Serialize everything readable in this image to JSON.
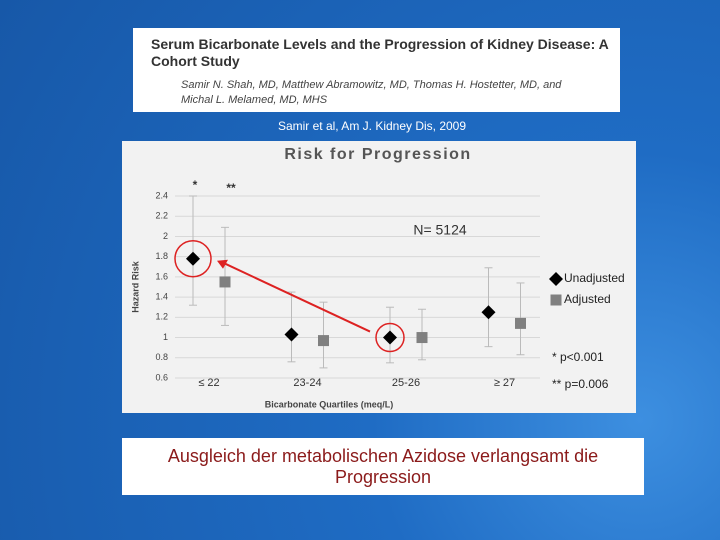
{
  "header": {
    "title": "Serum Bicarbonate Levels and the Progression of Kidney Disease: A Cohort Study",
    "authors": "Samir N. Shah, MD, Matthew Abramowitz, MD, Thomas H. Hostetter, MD, and Michal L. Melamed, MD, MHS"
  },
  "citation": "Samir et al, Am J. Kidney Dis, 2009",
  "chart_data": {
    "type": "scatter",
    "title": "Risk for Progression",
    "x_label": "Bicarbonate Quartiles (meq/L)",
    "y_label": "Hazard Risk",
    "categories": [
      "≤ 22",
      "23-24",
      "25-26",
      "≥ 27"
    ],
    "series": [
      {
        "name": "Unadjusted",
        "color": "#000000",
        "marker": "diamond",
        "values": [
          1.78,
          1.03,
          1.0,
          1.25
        ],
        "lower": [
          1.32,
          0.76,
          0.75,
          0.91
        ],
        "upper": [
          2.4,
          1.45,
          1.3,
          1.69
        ]
      },
      {
        "name": "Adjusted",
        "color": "#808080",
        "marker": "square",
        "values": [
          1.55,
          0.97,
          1.0,
          1.14
        ],
        "lower": [
          1.12,
          0.7,
          0.78,
          0.83
        ],
        "upper": [
          2.09,
          1.35,
          1.28,
          1.54
        ]
      }
    ],
    "ylim": [
      0.6,
      2.4
    ],
    "yticks": [
      0.6,
      0.8,
      1,
      1.2,
      1.4,
      1.6,
      1.8,
      2,
      2.2,
      2.4
    ],
    "grid": true,
    "annotations": [
      "*",
      "**",
      "N= 5124"
    ],
    "notes": [
      "* p<0.001",
      "** p=0.006"
    ]
  },
  "caption": "Ausgleich der metabolischen Azidose verlangsamt die Progression"
}
